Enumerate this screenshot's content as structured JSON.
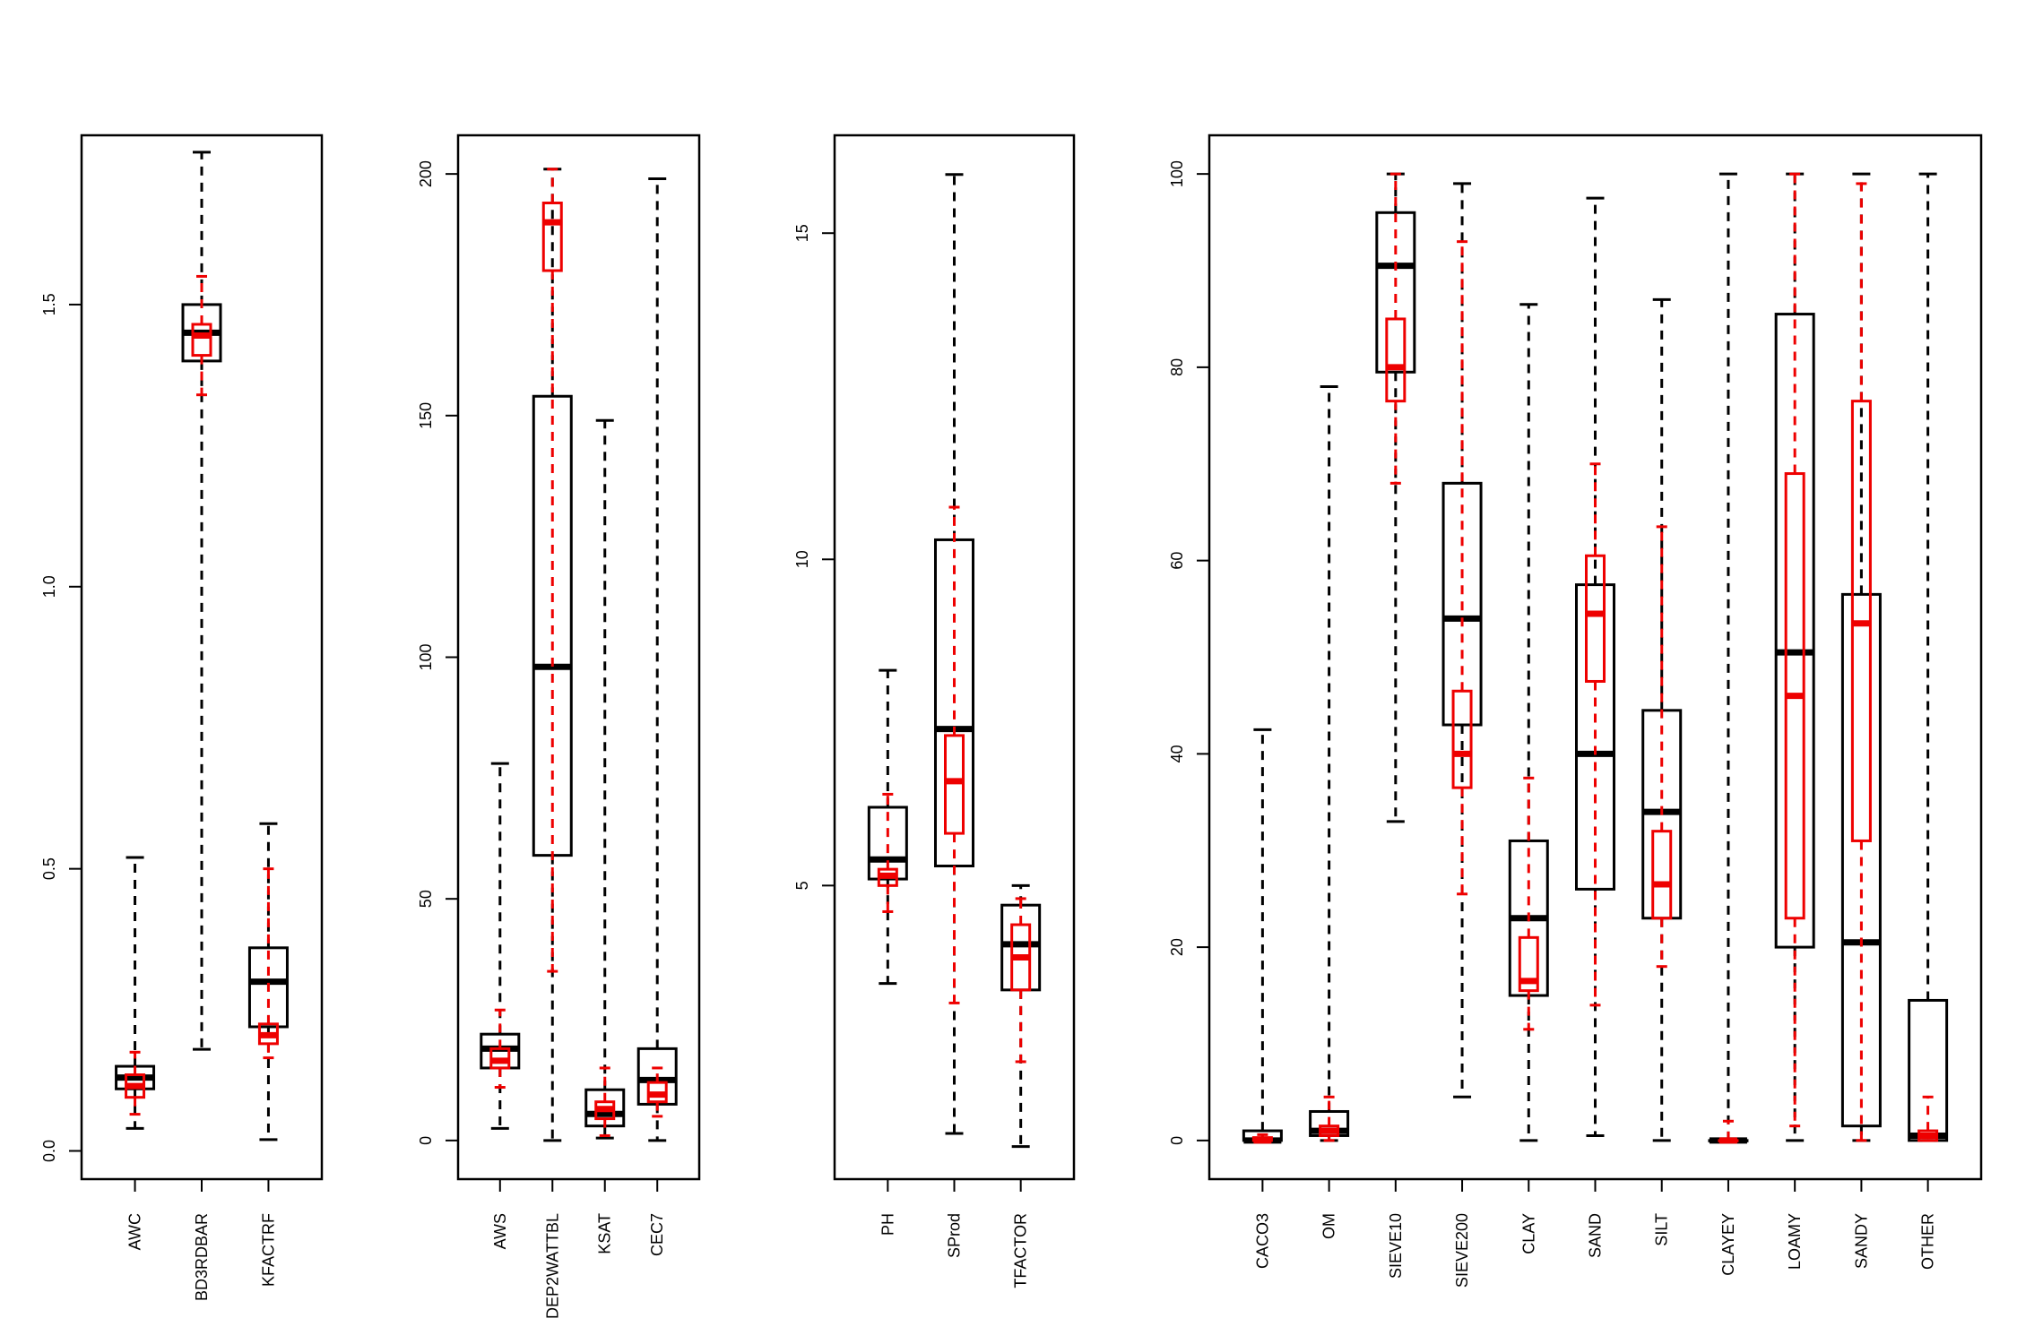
{
  "colors": {
    "all_soils": "#000000",
    "subset": "#ee0000",
    "background": "#ffffff"
  },
  "chart_data": [
    {
      "type": "box",
      "ylim": [
        -0.05,
        1.8
      ],
      "y_ticks": [
        0.0,
        0.5,
        1.0,
        1.5
      ],
      "y_tick_labels": [
        "0.0",
        "0.5",
        "1.0",
        "1.5"
      ],
      "categories": [
        "AWC",
        "BD3RDBAR",
        "KFACTRF"
      ],
      "series": [
        {
          "stats": [
            {
              "min": 0.04,
              "q1": 0.11,
              "median": 0.13,
              "q3": 0.15,
              "max": 0.52
            },
            {
              "min": 0.18,
              "q1": 1.4,
              "median": 1.45,
              "q3": 1.5,
              "max": 1.77
            },
            {
              "min": 0.02,
              "q1": 0.22,
              "median": 0.3,
              "q3": 0.36,
              "max": 0.58
            }
          ]
        },
        {
          "stats": [
            {
              "min": 0.065,
              "q1": 0.095,
              "median": 0.115,
              "q3": 0.135,
              "max": 0.175
            },
            {
              "min": 1.34,
              "q1": 1.41,
              "median": 1.445,
              "q3": 1.465,
              "max": 1.55
            },
            {
              "min": 0.165,
              "q1": 0.19,
              "median": 0.205,
              "q3": 0.225,
              "max": 0.5
            }
          ]
        }
      ]
    },
    {
      "type": "box",
      "ylim": [
        -8,
        208
      ],
      "y_ticks": [
        0,
        50,
        100,
        150,
        200
      ],
      "y_tick_labels": [
        "0",
        "50",
        "100",
        "150",
        "200"
      ],
      "categories": [
        "AWS",
        "DEP2WATTBL",
        "KSAT",
        "CEC7"
      ],
      "series": [
        {
          "stats": [
            {
              "min": 2.5,
              "q1": 15,
              "median": 19,
              "q3": 22,
              "max": 78
            },
            {
              "min": 0,
              "q1": 59,
              "median": 98,
              "q3": 154,
              "max": 201
            },
            {
              "min": 0.5,
              "q1": 3,
              "median": 5.5,
              "q3": 10.5,
              "max": 149
            },
            {
              "min": 0,
              "q1": 7.5,
              "median": 12.5,
              "q3": 19,
              "max": 199
            }
          ]
        },
        {
          "stats": [
            {
              "min": 11,
              "q1": 15,
              "median": 16.5,
              "q3": 19,
              "max": 27
            },
            {
              "min": 35,
              "q1": 180,
              "median": 190,
              "q3": 194,
              "max": 201
            },
            {
              "min": 1,
              "q1": 4.5,
              "median": 6.5,
              "q3": 8,
              "max": 15
            },
            {
              "min": 5,
              "q1": 8,
              "median": 9.5,
              "q3": 12,
              "max": 15
            }
          ]
        }
      ]
    },
    {
      "type": "box",
      "ylim": [
        0.5,
        16.5
      ],
      "y_ticks": [
        5,
        10,
        15
      ],
      "y_tick_labels": [
        "5",
        "10",
        "15"
      ],
      "categories": [
        "PH",
        "SProd",
        "TFACTOR"
      ],
      "series": [
        {
          "stats": [
            {
              "min": 3.5,
              "q1": 5.1,
              "median": 5.4,
              "q3": 6.2,
              "max": 8.3
            },
            {
              "min": 1.2,
              "q1": 5.3,
              "median": 7.4,
              "q3": 10.3,
              "max": 15.9
            },
            {
              "min": 1.0,
              "q1": 3.4,
              "median": 4.1,
              "q3": 4.7,
              "max": 5.0
            }
          ]
        },
        {
          "stats": [
            {
              "min": 4.6,
              "q1": 5.0,
              "median": 5.15,
              "q3": 5.25,
              "max": 6.4
            },
            {
              "min": 3.2,
              "q1": 5.8,
              "median": 6.6,
              "q3": 7.3,
              "max": 10.8
            },
            {
              "min": 2.3,
              "q1": 3.4,
              "median": 3.9,
              "q3": 4.4,
              "max": 4.8
            }
          ]
        }
      ]
    },
    {
      "type": "box",
      "ylim": [
        -4,
        104
      ],
      "y_ticks": [
        0,
        20,
        40,
        60,
        80,
        100
      ],
      "y_tick_labels": [
        "0",
        "20",
        "40",
        "60",
        "80",
        "100"
      ],
      "categories": [
        "CACO3",
        "OM",
        "SIEVE10",
        "SIEVE200",
        "CLAY",
        "SAND",
        "SILT",
        "CLAYEY",
        "LOAMY",
        "SANDY",
        "OTHER"
      ],
      "series": [
        {
          "stats": [
            {
              "min": 0,
              "q1": 0,
              "median": 0,
              "q3": 1,
              "max": 42.5
            },
            {
              "min": 0,
              "q1": 0.5,
              "median": 1,
              "q3": 3,
              "max": 78
            },
            {
              "min": 33,
              "q1": 79.5,
              "median": 90.5,
              "q3": 96,
              "max": 100
            },
            {
              "min": 4.5,
              "q1": 43,
              "median": 54,
              "q3": 68,
              "max": 99
            },
            {
              "min": 0,
              "q1": 15,
              "median": 23,
              "q3": 31,
              "max": 86.5
            },
            {
              "min": 0.5,
              "q1": 26,
              "median": 40,
              "q3": 57.5,
              "max": 97.5
            },
            {
              "min": 0,
              "q1": 23,
              "median": 34,
              "q3": 44.5,
              "max": 87
            },
            {
              "min": 0,
              "q1": 0,
              "median": 0,
              "q3": 0,
              "max": 100
            },
            {
              "min": 0,
              "q1": 20,
              "median": 50.5,
              "q3": 85.5,
              "max": 100
            },
            {
              "min": 0,
              "q1": 1.5,
              "median": 20.5,
              "q3": 56.5,
              "max": 100
            },
            {
              "min": 0,
              "q1": 0,
              "median": 0.5,
              "q3": 14.5,
              "max": 100
            }
          ]
        },
        {
          "stats": [
            {
              "min": 0,
              "q1": 0,
              "median": 0,
              "q3": 0.3,
              "max": 0.6
            },
            {
              "min": 0,
              "q1": 0.5,
              "median": 1,
              "q3": 1.5,
              "max": 4.5
            },
            {
              "min": 68,
              "q1": 76.5,
              "median": 80,
              "q3": 85,
              "max": 100
            },
            {
              "min": 25.5,
              "q1": 36.5,
              "median": 40,
              "q3": 46.5,
              "max": 93
            },
            {
              "min": 11.5,
              "q1": 15.5,
              "median": 16.5,
              "q3": 21,
              "max": 37.5
            },
            {
              "min": 14,
              "q1": 47.5,
              "median": 54.5,
              "q3": 60.5,
              "max": 70
            },
            {
              "min": 18,
              "q1": 23,
              "median": 26.5,
              "q3": 32,
              "max": 63.5
            },
            {
              "min": 0,
              "q1": 0,
              "median": 0,
              "q3": 0,
              "max": 2
            },
            {
              "min": 1.5,
              "q1": 23,
              "median": 46,
              "q3": 69,
              "max": 100
            },
            {
              "min": 0,
              "q1": 31,
              "median": 53.5,
              "q3": 76.5,
              "max": 99
            },
            {
              "min": 0,
              "q1": 0,
              "median": 0.5,
              "q3": 1,
              "max": 4.5
            }
          ]
        }
      ]
    }
  ]
}
